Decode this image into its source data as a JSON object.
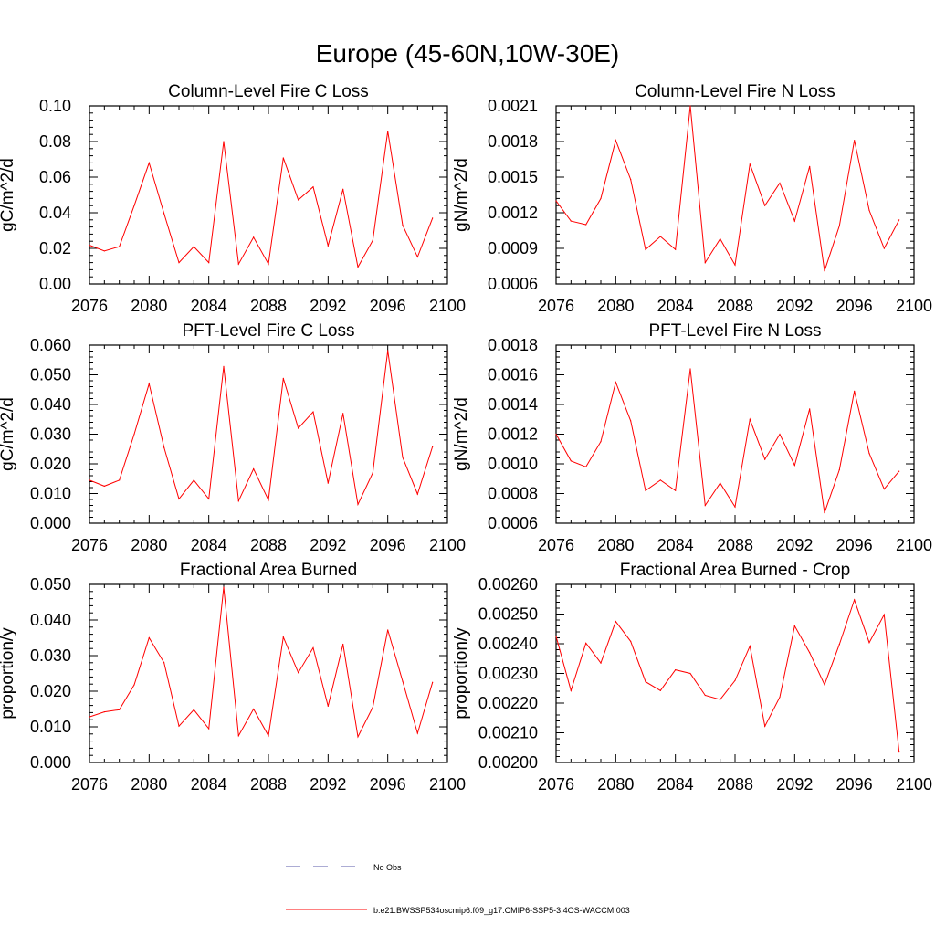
{
  "figure": {
    "title": "Europe (45-60N,10W-30E)",
    "series_color": "#ff0000",
    "obs_color": "#5a5aaa",
    "legend": [
      {
        "label": "No Obs",
        "style": "dashed"
      },
      {
        "label": "b.e21.BWSSP534oscmip6.f09_g17.CMIP6-SSP5-3.4OS-WACCM.003",
        "style": "solid"
      }
    ]
  },
  "chart_data": [
    {
      "type": "line",
      "title": "Column-Level Fire C Loss",
      "ylabel": "gC/m^2/d",
      "xlim": [
        2076,
        2100
      ],
      "ylim": [
        0.0,
        0.1
      ],
      "xticks": [
        "2076",
        "2080",
        "2084",
        "2088",
        "2092",
        "2096",
        "2100"
      ],
      "yticks": [
        "0.00",
        "0.02",
        "0.04",
        "0.06",
        "0.08",
        "0.10"
      ],
      "x": [
        2076,
        2077,
        2078,
        2079,
        2080,
        2081,
        2082,
        2083,
        2084,
        2085,
        2086,
        2087,
        2088,
        2089,
        2090,
        2091,
        2092,
        2093,
        2094,
        2095,
        2096,
        2097,
        2098,
        2099
      ],
      "values": [
        0.0218,
        0.0185,
        0.021,
        0.044,
        0.068,
        0.0395,
        0.012,
        0.021,
        0.012,
        0.08,
        0.0112,
        0.0262,
        0.0112,
        0.0708,
        0.0472,
        0.0545,
        0.0215,
        0.0532,
        0.0095,
        0.0245,
        0.0858,
        0.033,
        0.0152,
        0.037
      ]
    },
    {
      "type": "line",
      "title": "Column-Level Fire N Loss",
      "ylabel": "gN/m^2/d",
      "xlim": [
        2076,
        2100
      ],
      "ylim": [
        0.0006,
        0.0021
      ],
      "xticks": [
        "2076",
        "2080",
        "2084",
        "2088",
        "2092",
        "2096",
        "2100"
      ],
      "yticks": [
        "0.0006",
        "0.0009",
        "0.0012",
        "0.0015",
        "0.0018",
        "0.0021"
      ],
      "x": [
        2076,
        2077,
        2078,
        2079,
        2080,
        2081,
        2082,
        2083,
        2084,
        2085,
        2086,
        2087,
        2088,
        2089,
        2090,
        2091,
        2092,
        2093,
        2094,
        2095,
        2096,
        2097,
        2098,
        2099
      ],
      "values": [
        0.0013,
        0.00113,
        0.0011,
        0.00132,
        0.00181,
        0.00148,
        0.00089,
        0.001,
        0.00089,
        0.0021,
        0.00078,
        0.00098,
        0.00076,
        0.00161,
        0.00126,
        0.00145,
        0.00113,
        0.00159,
        0.00071,
        0.00109,
        0.00181,
        0.00122,
        0.0009,
        0.00114
      ]
    },
    {
      "type": "line",
      "title": "PFT-Level Fire C Loss",
      "ylabel": "gC/m^2/d",
      "xlim": [
        2076,
        2100
      ],
      "ylim": [
        0.0,
        0.06
      ],
      "xticks": [
        "2076",
        "2080",
        "2084",
        "2088",
        "2092",
        "2096",
        "2100"
      ],
      "yticks": [
        "0.000",
        "0.010",
        "0.020",
        "0.030",
        "0.040",
        "0.050",
        "0.060"
      ],
      "x": [
        2076,
        2077,
        2078,
        2079,
        2080,
        2081,
        2082,
        2083,
        2084,
        2085,
        2086,
        2087,
        2088,
        2089,
        2090,
        2091,
        2092,
        2093,
        2094,
        2095,
        2096,
        2097,
        2098,
        2099
      ],
      "values": [
        0.0145,
        0.0125,
        0.0145,
        0.03,
        0.047,
        0.0255,
        0.0082,
        0.0145,
        0.0082,
        0.0528,
        0.0075,
        0.0183,
        0.0078,
        0.0488,
        0.032,
        0.0375,
        0.0135,
        0.037,
        0.0063,
        0.017,
        0.0582,
        0.0222,
        0.0098,
        0.0258
      ]
    },
    {
      "type": "line",
      "title": "PFT-Level Fire N Loss",
      "ylabel": "gN/m^2/d",
      "xlim": [
        2076,
        2100
      ],
      "ylim": [
        0.0006,
        0.0018
      ],
      "xticks": [
        "2076",
        "2080",
        "2084",
        "2088",
        "2092",
        "2096",
        "2100"
      ],
      "yticks": [
        "0.0006",
        "0.0008",
        "0.0010",
        "0.0012",
        "0.0014",
        "0.0016",
        "0.0018"
      ],
      "x": [
        2076,
        2077,
        2078,
        2079,
        2080,
        2081,
        2082,
        2083,
        2084,
        2085,
        2086,
        2087,
        2088,
        2089,
        2090,
        2091,
        2092,
        2093,
        2094,
        2095,
        2096,
        2097,
        2098,
        2099
      ],
      "values": [
        0.0012,
        0.00102,
        0.00098,
        0.00115,
        0.00155,
        0.00129,
        0.00082,
        0.00089,
        0.00082,
        0.00164,
        0.00072,
        0.00087,
        0.00071,
        0.0013,
        0.00103,
        0.0012,
        0.00099,
        0.00137,
        0.00067,
        0.00096,
        0.00149,
        0.00107,
        0.00083,
        0.00095
      ]
    },
    {
      "type": "line",
      "title": "Fractional Area Burned",
      "ylabel": "proportion/y",
      "xlim": [
        2076,
        2100
      ],
      "ylim": [
        0.0,
        0.05
      ],
      "xticks": [
        "2076",
        "2080",
        "2084",
        "2088",
        "2092",
        "2096",
        "2100"
      ],
      "yticks": [
        "0.000",
        "0.010",
        "0.020",
        "0.030",
        "0.040",
        "0.050"
      ],
      "x": [
        2076,
        2077,
        2078,
        2079,
        2080,
        2081,
        2082,
        2083,
        2084,
        2085,
        2086,
        2087,
        2088,
        2089,
        2090,
        2091,
        2092,
        2093,
        2094,
        2095,
        2096,
        2097,
        2098,
        2099
      ],
      "values": [
        0.0128,
        0.0142,
        0.0148,
        0.0218,
        0.035,
        0.028,
        0.0102,
        0.0148,
        0.0095,
        0.0492,
        0.0075,
        0.015,
        0.0075,
        0.0352,
        0.0252,
        0.0322,
        0.0158,
        0.0332,
        0.0072,
        0.0155,
        0.0372,
        0.0228,
        0.0082,
        0.0225
      ]
    },
    {
      "type": "line",
      "title": "Fractional Area Burned - Crop",
      "ylabel": "proportion/y",
      "xlim": [
        2076,
        2100
      ],
      "ylim": [
        0.002,
        0.0026
      ],
      "xticks": [
        "2076",
        "2080",
        "2084",
        "2088",
        "2092",
        "2096",
        "2100"
      ],
      "yticks": [
        "0.00200",
        "0.00210",
        "0.00220",
        "0.00230",
        "0.00240",
        "0.00250",
        "0.00260"
      ],
      "x": [
        2076,
        2077,
        2078,
        2079,
        2080,
        2081,
        2082,
        2083,
        2084,
        2085,
        2086,
        2087,
        2088,
        2089,
        2090,
        2091,
        2092,
        2093,
        2094,
        2095,
        2096,
        2097,
        2098,
        2099
      ],
      "values": [
        0.002425,
        0.002242,
        0.002402,
        0.002335,
        0.002475,
        0.002408,
        0.002272,
        0.002242,
        0.002312,
        0.0023,
        0.002226,
        0.002212,
        0.002276,
        0.002392,
        0.002122,
        0.00222,
        0.00246,
        0.00237,
        0.002262,
        0.002398,
        0.002548,
        0.002404,
        0.002498,
        0.002035
      ]
    }
  ]
}
